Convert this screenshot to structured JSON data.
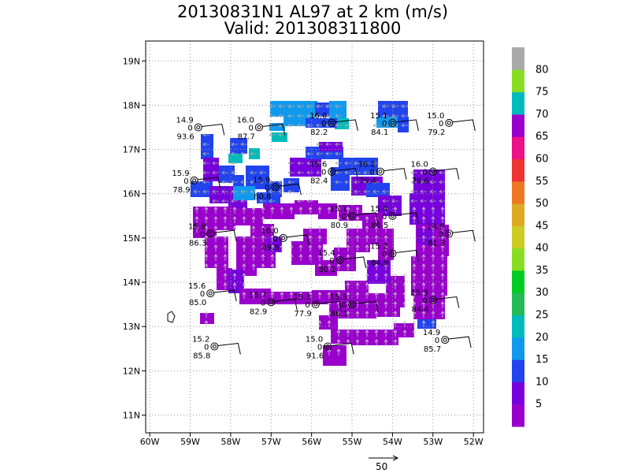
{
  "title": {
    "line1": "20130831N1 AL97 at 2 km (m/s)",
    "line2": "Valid: 201308311800"
  },
  "map": {
    "lon_labels": [
      "60W",
      "59W",
      "58W",
      "57W",
      "56W",
      "55W",
      "54W",
      "53W",
      "52W"
    ],
    "lat_labels": [
      "11N",
      "12N",
      "13N",
      "14N",
      "15N",
      "16N",
      "17N",
      "18N",
      "19N"
    ],
    "lon_range": [
      -60.1,
      -51.75
    ],
    "lat_range": [
      10.6,
      19.45
    ]
  },
  "colorbar": {
    "labels": [
      "5",
      "10",
      "15",
      "20",
      "25",
      "30",
      "35",
      "40",
      "45",
      "50",
      "55",
      "60",
      "65",
      "70",
      "75",
      "80"
    ],
    "colors": [
      "#9900cc",
      "#7700dd",
      "#2244ee",
      "#1199ee",
      "#00bbbb",
      "#22bb55",
      "#00cc22",
      "#88dd22",
      "#cccc22",
      "#ddaa22",
      "#ee7722",
      "#ee3333",
      "#ee1188",
      "#9900cc",
      "#00bbbb",
      "#88dd22",
      "#aaaaaa"
    ]
  },
  "reference_vector": {
    "label": "50"
  },
  "stations": [
    {
      "lon": -58.8,
      "lat": 17.5,
      "speed": "14.9",
      "dir": "93.6"
    },
    {
      "lon": -57.3,
      "lat": 17.5,
      "speed": "16.0",
      "dir": "87.7"
    },
    {
      "lon": -55.5,
      "lat": 17.6,
      "speed": "16.0",
      "dir": "82.2"
    },
    {
      "lon": -54.0,
      "lat": 17.6,
      "speed": "15.1",
      "dir": "84.1"
    },
    {
      "lon": -52.6,
      "lat": 17.6,
      "speed": "15.0",
      "dir": "79.2"
    },
    {
      "lon": -58.9,
      "lat": 16.3,
      "speed": "15.9",
      "dir": "78.9"
    },
    {
      "lon": -56.9,
      "lat": 16.15,
      "speed": "15.9",
      "dir": "80.8"
    },
    {
      "lon": -55.5,
      "lat": 16.5,
      "speed": "15.6",
      "dir": "82.4"
    },
    {
      "lon": -54.3,
      "lat": 16.5,
      "speed": "16.2",
      "dir": "79.4"
    },
    {
      "lon": -53.0,
      "lat": 16.5,
      "speed": "16.0",
      "dir": "76.6"
    },
    {
      "lon": -55.0,
      "lat": 15.5,
      "speed": "15.1",
      "dir": "80.9"
    },
    {
      "lon": -58.5,
      "lat": 15.1,
      "speed": "15.8",
      "dir": "86.3"
    },
    {
      "lon": -56.7,
      "lat": 15.0,
      "speed": "16.0",
      "dir": "89.8"
    },
    {
      "lon": -54.0,
      "lat": 15.5,
      "speed": "15.4",
      "dir": "86.5"
    },
    {
      "lon": -52.6,
      "lat": 15.1,
      "speed": "14.9",
      "dir": "81.3"
    },
    {
      "lon": -55.3,
      "lat": 14.5,
      "speed": "15.4",
      "dir": "80.2"
    },
    {
      "lon": -54.0,
      "lat": 14.65,
      "speed": "15.2",
      "dir": "84.9"
    },
    {
      "lon": -58.5,
      "lat": 13.75,
      "speed": "15.6",
      "dir": "85.0"
    },
    {
      "lon": -57.0,
      "lat": 13.55,
      "speed": "15.7",
      "dir": "82.9"
    },
    {
      "lon": -55.9,
      "lat": 13.5,
      "speed": "15.3",
      "dir": "77.9"
    },
    {
      "lon": -55.0,
      "lat": 13.5,
      "speed": "15.3",
      "dir": "86.1"
    },
    {
      "lon": -53.0,
      "lat": 13.6,
      "speed": "15.3",
      "dir": "84.4"
    },
    {
      "lon": -58.4,
      "lat": 12.55,
      "speed": "15.2",
      "dir": "85.8"
    },
    {
      "lon": -55.6,
      "lat": 12.55,
      "speed": "15.0",
      "dir": "91.6"
    },
    {
      "lon": -52.7,
      "lat": 12.7,
      "speed": "14.9",
      "dir": "85.7"
    }
  ]
}
